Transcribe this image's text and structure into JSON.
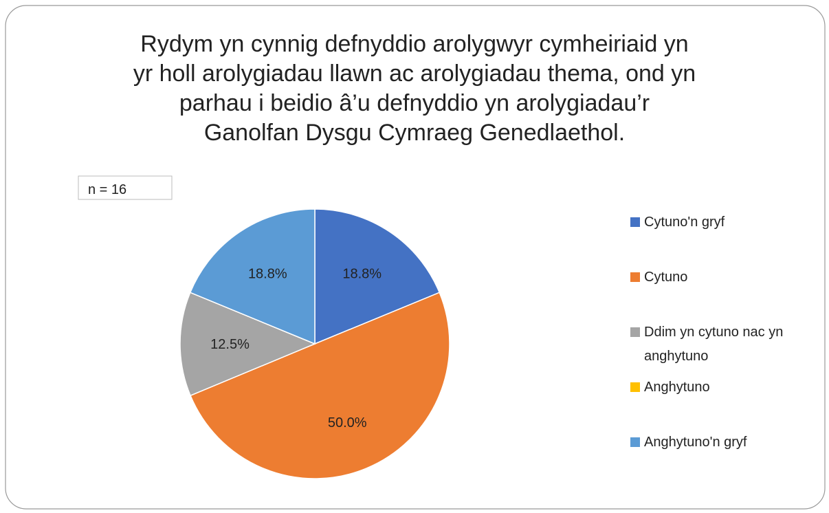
{
  "chart_data": {
    "type": "pie",
    "title": [
      "Rydym yn cynnig defnyddio arolygwyr cymheiriaid yn",
      "yr holl arolygiadau llawn ac arolygiadau thema, ond yn",
      "parhau i beidio â’u defnyddio yn arolygiadau’r",
      "Ganolfan Dysgu Cymraeg Genedlaethol."
    ],
    "annotation": "n = 16",
    "categories": [
      "Cytuno'n gryf",
      "Cytuno",
      "Ddim yn cytuno nac yn anghytuno",
      "Anghytuno",
      "Anghytuno'n gryf"
    ],
    "values": [
      18.8,
      50.0,
      12.5,
      0,
      18.8
    ],
    "value_labels": [
      "18.8%",
      "50.0%",
      "12.5%",
      null,
      "18.8%"
    ],
    "colors": [
      "#4472c4",
      "#ed7d31",
      "#a5a5a5",
      "#ffc000",
      "#5b9bd5"
    ],
    "legend": "right"
  }
}
